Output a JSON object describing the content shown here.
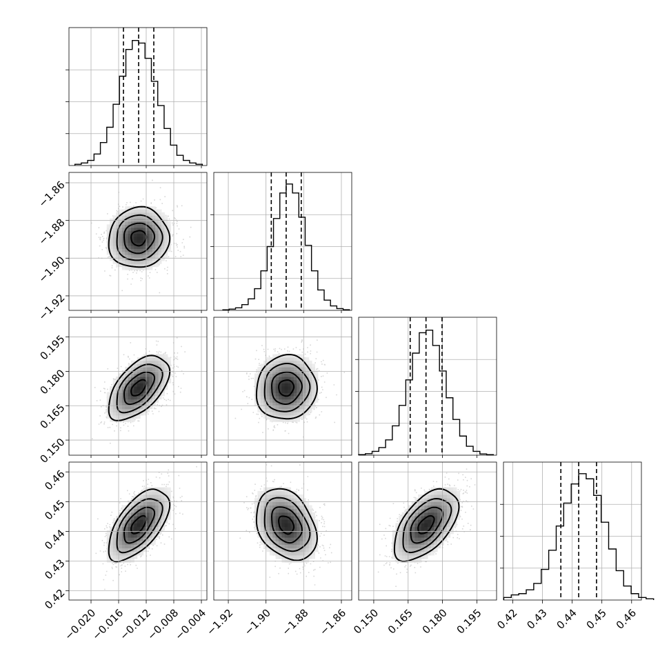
{
  "chart_data": {
    "type": "corner",
    "grid": true,
    "params": [
      {
        "mean": -0.0131,
        "sd": 0.0022,
        "range": [
          -0.0232,
          -0.0032
        ],
        "ticks": [
          -0.02,
          -0.016,
          -0.012,
          -0.008,
          -0.004
        ],
        "tick_labels": [
          "−0.020",
          "−0.016",
          "−0.012",
          "−0.008",
          "−0.004"
        ],
        "quantiles": [
          -0.0153,
          -0.0131,
          -0.0109
        ]
      },
      {
        "mean": -1.8893,
        "sd": 0.008,
        "range": [
          -1.9277,
          -1.8545
        ],
        "ticks": [
          -1.92,
          -1.9,
          -1.88,
          -1.86
        ],
        "tick_labels": [
          "−1.92",
          "−1.90",
          "−1.88",
          "−1.86"
        ],
        "quantiles": [
          -1.8972,
          -1.8893,
          -1.8813
        ]
      },
      {
        "mean": 0.1728,
        "sd": 0.007,
        "range": [
          0.1434,
          0.2036
        ],
        "ticks": [
          0.15,
          0.165,
          0.18,
          0.195
        ],
        "tick_labels": [
          "0.150",
          "0.165",
          "0.180",
          "0.195"
        ],
        "quantiles": [
          0.1659,
          0.1728,
          0.1798
        ]
      },
      {
        "mean": 0.4422,
        "sd": 0.006,
        "range": [
          0.4169,
          0.4633
        ],
        "ticks": [
          0.42,
          0.43,
          0.44,
          0.45,
          0.46
        ],
        "tick_labels": [
          "0.42",
          "0.43",
          "0.44",
          "0.45",
          "0.46"
        ],
        "quantiles": [
          0.4362,
          0.4422,
          0.4482
        ]
      }
    ],
    "histograms": [
      [
        0.01,
        0.02,
        0.04,
        0.09,
        0.18,
        0.3,
        0.48,
        0.7,
        0.91,
        0.98,
        0.96,
        0.84,
        0.66,
        0.47,
        0.29,
        0.16,
        0.08,
        0.04,
        0.02,
        0.01
      ],
      [
        0.004,
        0.01,
        0.02,
        0.045,
        0.09,
        0.17,
        0.31,
        0.5,
        0.72,
        0.92,
        0.99,
        0.92,
        0.73,
        0.51,
        0.31,
        0.16,
        0.08,
        0.035,
        0.014,
        0.005
      ],
      [
        0.004,
        0.012,
        0.03,
        0.06,
        0.12,
        0.23,
        0.39,
        0.59,
        0.8,
        0.96,
        0.98,
        0.86,
        0.66,
        0.45,
        0.28,
        0.15,
        0.07,
        0.03,
        0.01,
        0.004
      ],
      [
        0.02,
        0.04,
        0.05,
        0.08,
        0.13,
        0.24,
        0.39,
        0.58,
        0.76,
        0.91,
        0.99,
        0.95,
        0.82,
        0.61,
        0.4,
        0.23,
        0.11,
        0.05,
        0.02,
        0.01
      ]
    ],
    "correlations": [
      {
        "x": 0,
        "y": 1,
        "rho": 0.05
      },
      {
        "x": 0,
        "y": 2,
        "rho": 0.55
      },
      {
        "x": 1,
        "y": 2,
        "rho": 0.05
      },
      {
        "x": 0,
        "y": 3,
        "rho": 0.6
      },
      {
        "x": 1,
        "y": 3,
        "rho": -0.3
      },
      {
        "x": 2,
        "y": 3,
        "rho": 0.55
      }
    ]
  }
}
